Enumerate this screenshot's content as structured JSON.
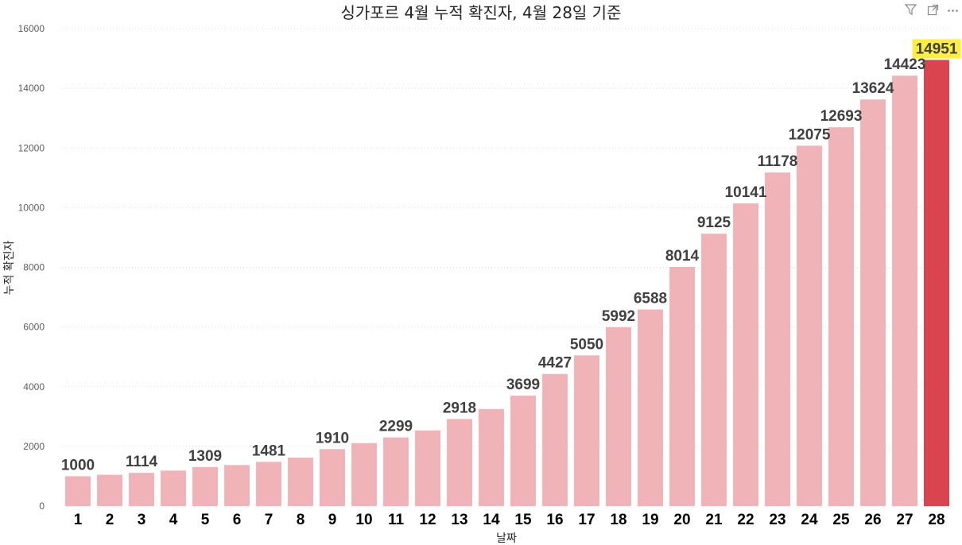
{
  "chart_data": {
    "type": "bar",
    "title": "싱가포르 4월 누적 확진자, 4월 28일 기준",
    "xlabel": "날짜",
    "ylabel": "누적 확진자",
    "ylim": [
      0,
      16000
    ],
    "yticks": [
      "0",
      "2000",
      "4000",
      "6000",
      "8000",
      "10000",
      "12000",
      "14000",
      "16000"
    ],
    "grid": true,
    "categories": [
      "1",
      "2",
      "3",
      "4",
      "5",
      "6",
      "7",
      "8",
      "9",
      "10",
      "11",
      "12",
      "13",
      "14",
      "15",
      "16",
      "17",
      "18",
      "19",
      "20",
      "21",
      "22",
      "23",
      "24",
      "25",
      "26",
      "27",
      "28"
    ],
    "values": [
      1000,
      1049,
      1114,
      1189,
      1309,
      1375,
      1481,
      1623,
      1910,
      2108,
      2299,
      2532,
      2918,
      3252,
      3699,
      4427,
      5050,
      5992,
      6588,
      8014,
      9125,
      10141,
      11178,
      12075,
      12693,
      13624,
      14423,
      14951
    ],
    "data_labels": [
      "1000",
      "",
      "1114",
      "",
      "1309",
      "",
      "1481",
      "",
      "1910",
      "",
      "2299",
      "",
      "2918",
      "",
      "3699",
      "4427",
      "5050",
      "5992",
      "6588",
      "8014",
      "9125",
      "10141",
      "11178",
      "12075",
      "12693",
      "13624",
      "14423",
      "14951"
    ],
    "highlight_index": 27,
    "colors": {
      "bar": "#efb3b8",
      "highlight_bar": "#d9444f",
      "highlight_label_bg": "#ffee3a"
    }
  },
  "toolbar": {
    "icons": [
      "filter-icon",
      "focus-mode-icon",
      "more-options-icon"
    ]
  }
}
